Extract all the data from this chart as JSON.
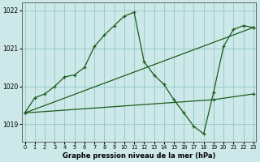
{
  "xlabel": "Graphe pression niveau de la mer (hPa)",
  "bg_color": "#cce8e8",
  "plot_bg_color": "#cce8e8",
  "grid_color": "#99cccc",
  "line_color": "#1a5c1a",
  "x_ticks": [
    0,
    1,
    2,
    3,
    4,
    5,
    6,
    7,
    8,
    9,
    10,
    11,
    12,
    13,
    14,
    15,
    16,
    17,
    18,
    19,
    20,
    21,
    22,
    23
  ],
  "ylim": [
    1018.55,
    1022.2
  ],
  "xlim": [
    -0.3,
    23.3
  ],
  "yticks": [
    1019,
    1020,
    1021,
    1022
  ],
  "series1_x": [
    0,
    1,
    2,
    3,
    4,
    5,
    6,
    7,
    8,
    9,
    10,
    11,
    12,
    13,
    14,
    15,
    16,
    17,
    18,
    19,
    20,
    21,
    22,
    23
  ],
  "series1_y": [
    1019.3,
    1019.7,
    1019.8,
    1020.0,
    1020.25,
    1020.3,
    1020.5,
    1021.05,
    1021.35,
    1021.6,
    1021.85,
    1021.95,
    1020.65,
    1020.3,
    1020.05,
    1019.65,
    1019.3,
    1018.95,
    1018.75,
    1019.85,
    1021.05,
    1021.5,
    1021.6,
    1021.55
  ],
  "series2_x": [
    0,
    23
  ],
  "series2_y": [
    1019.3,
    1021.55
  ],
  "series3_x": [
    0,
    19,
    23
  ],
  "series3_y": [
    1019.3,
    1019.65,
    1019.8
  ]
}
